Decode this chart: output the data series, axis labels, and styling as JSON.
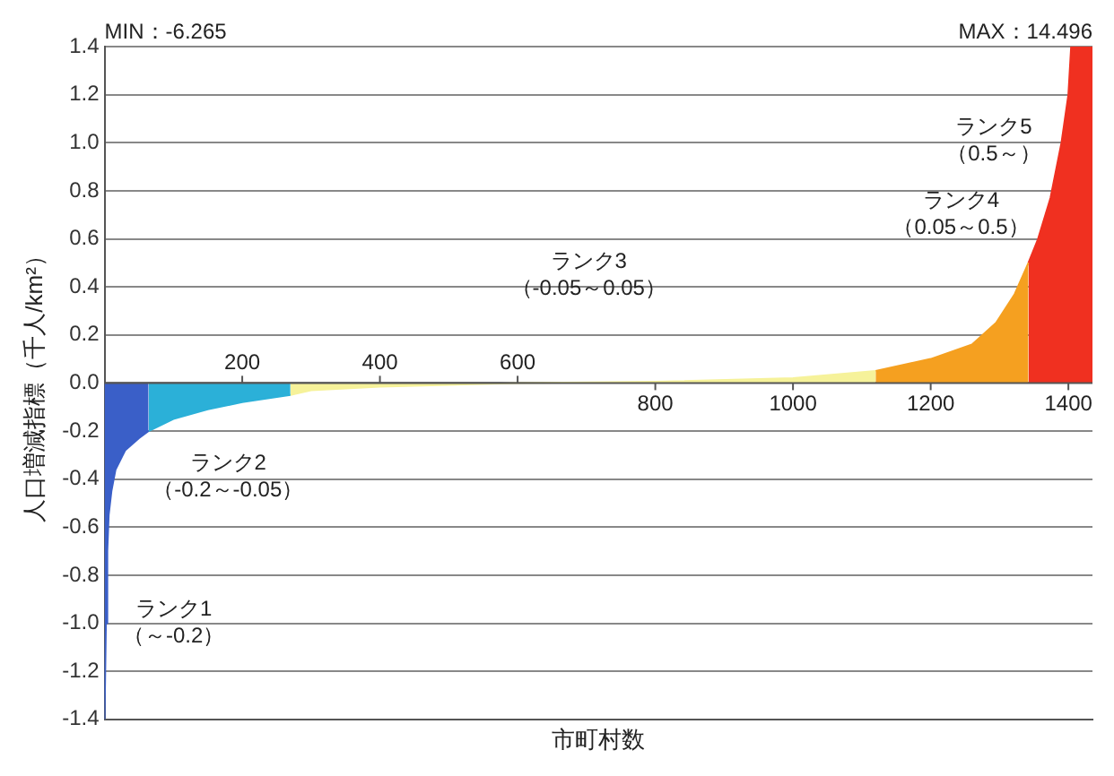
{
  "chart_data": {
    "type": "area",
    "xlabel": "市町村数",
    "ylabel": "人口増減指標（千人/km²）",
    "xlim": [
      0,
      1435
    ],
    "xticks": [
      800,
      1000,
      1200,
      1400
    ],
    "x2lim": [
      0,
      1435
    ],
    "x2ticks": [
      200,
      400,
      600
    ],
    "ylim": [
      -1.4,
      1.4
    ],
    "yticks": [
      {
        "value": -1.4,
        "label": "-1.4"
      },
      {
        "value": -1.2,
        "label": "-1.2"
      },
      {
        "value": -1,
        "label": "-1.0"
      },
      {
        "value": -0.8,
        "label": "-0.8"
      },
      {
        "value": -0.6,
        "label": "-0.6"
      },
      {
        "value": -0.4,
        "label": "-0.4"
      },
      {
        "value": -0.2,
        "label": "-0.2"
      },
      {
        "value": 0,
        "label": "0.0"
      },
      {
        "value": 0.2,
        "label": "0.2"
      },
      {
        "value": 0.4,
        "label": "0.4"
      },
      {
        "value": 0.6,
        "label": "0.6"
      },
      {
        "value": 0.8,
        "label": "0.8"
      },
      {
        "value": 1,
        "label": "1.0"
      },
      {
        "value": 1.2,
        "label": "1.2"
      },
      {
        "value": 1.4,
        "label": "1.4"
      }
    ],
    "grid": "y",
    "series": [
      {
        "color": "#3a5fc8",
        "x": [
          0,
          2,
          4,
          6,
          10,
          16,
          30,
          50,
          64
        ],
        "values": [
          -1.4,
          -1.0,
          -0.7,
          -0.55,
          -0.45,
          -0.36,
          -0.28,
          -0.23,
          -0.2
        ]
      },
      {
        "color": "#2bb0d8",
        "x": [
          64,
          100,
          150,
          200,
          270
        ],
        "values": [
          -0.2,
          -0.15,
          -0.11,
          -0.08,
          -0.05
        ]
      },
      {
        "color": "#f6f29a",
        "x": [
          270,
          300,
          400,
          600,
          800,
          1000,
          1120
        ],
        "values": [
          -0.05,
          -0.03,
          -0.015,
          0,
          0.005,
          0.02,
          0.05
        ]
      },
      {
        "color": "#f5a020",
        "x": [
          1120,
          1200,
          1260,
          1295,
          1322,
          1342
        ],
        "values": [
          0.05,
          0.1,
          0.16,
          0.25,
          0.37,
          0.5
        ]
      },
      {
        "color": "#f03020",
        "x": [
          1342,
          1356,
          1374,
          1390,
          1400,
          1404,
          1435
        ],
        "values": [
          0.5,
          0.6,
          0.77,
          1.0,
          1.2,
          1.4,
          1.4
        ]
      }
    ],
    "annotations": [
      "ランク1\n（～-0.2）",
      "ランク2\n（-0.2～-0.05）",
      "ランク3\n（-0.05～0.05）",
      "ランク4\n（0.05～0.5）",
      "ランク5\n（0.5～）",
      "MIN：-6.265",
      "MAX：14.496"
    ]
  }
}
